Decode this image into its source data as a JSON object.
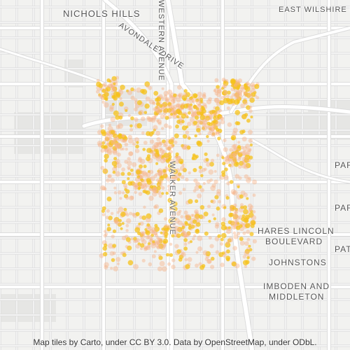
{
  "map": {
    "labels": {
      "nichols_hills": "NICHOLS HILLS",
      "east_wilshire_boulevard": "EAST WILSHIRE BOULEVARD",
      "avondale_drive": "AVONDALE DRIVE",
      "western_avenue": "WESTERN AVENUE",
      "hares_lincoln_boulevard_line1": "HARES LINCOLN",
      "hares_lincoln_boulevard_line2": "BOULEVARD",
      "johnstons": "JOHNSTONS",
      "imboden_and_middleton_line1": "IMBODEN AND",
      "imboden_and_middleton_line2": "MIDDLETON",
      "walker_avenue": "WALKER AVENUE",
      "clipped_right_1": "PAR",
      "clipped_right_2": "PAR",
      "clipped_right_3": "PAT"
    },
    "attribution": "Map tiles by Carto, under CC BY 3.0. Data by OpenStreetMap, under ODbL.",
    "colors": {
      "background": "#f2f2f0",
      "road": "#ffffff",
      "road_outline": "#dcdcdc",
      "block": "#e6e6e4",
      "heat_low": "#f7b48a",
      "heat_high": "#f5c21a"
    }
  }
}
